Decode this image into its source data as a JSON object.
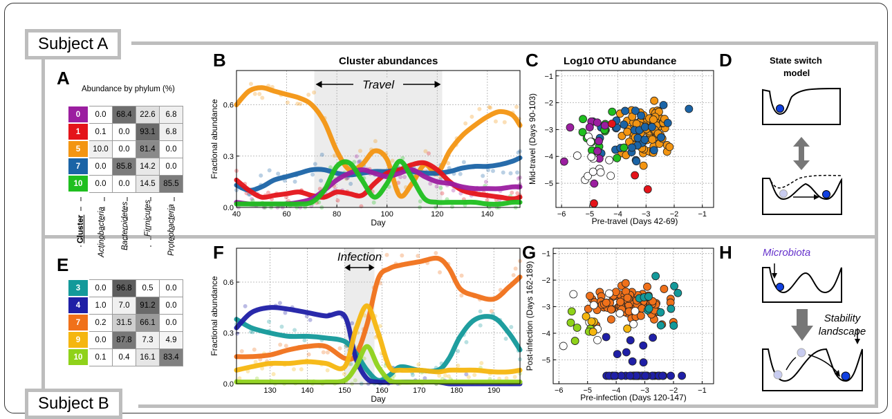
{
  "subjects": {
    "a": "Subject A",
    "b": "Subject B"
  },
  "letters": {
    "A": "A",
    "B": "B",
    "C": "C",
    "D": "D",
    "E": "E",
    "F": "F",
    "G": "G",
    "H": "H"
  },
  "abundance_title": "Abundance by phylum (%)",
  "cluster_label": "Cluster",
  "phyla": [
    "Actinobacteria",
    "Bacteroidetes",
    "Firmicutes",
    "Proteobacteria"
  ],
  "table_a": [
    {
      "cluster": "0",
      "color": "#9b1ea0",
      "values": [
        "0.0",
        "68.4",
        "22.6",
        "6.8"
      ],
      "shades": [
        "#fff",
        "#6e6e6e",
        "#e0e0e0",
        "#f0f0f0"
      ]
    },
    {
      "cluster": "1",
      "color": "#e4141a",
      "values": [
        "0.1",
        "0.0",
        "93.1",
        "6.8"
      ],
      "shades": [
        "#fff",
        "#fff",
        "#6a6a6a",
        "#f0f0f0"
      ]
    },
    {
      "cluster": "5",
      "color": "#f39512",
      "values": [
        "10.0",
        "0.0",
        "81.4",
        "0.0"
      ],
      "shades": [
        "#f0f0f0",
        "#fff",
        "#8a8a8a",
        "#fff"
      ]
    },
    {
      "cluster": "7",
      "color": "#1b64a6",
      "values": [
        "0.0",
        "85.8",
        "14.2",
        "0.0"
      ],
      "shades": [
        "#fff",
        "#7c7c7c",
        "#e8e8e8",
        "#fff"
      ]
    },
    {
      "cluster": "10",
      "color": "#1fbf1f",
      "values": [
        "0.0",
        "0.0",
        "14.5",
        "85.5"
      ],
      "shades": [
        "#fff",
        "#fff",
        "#e8e8e8",
        "#7c7c7c"
      ]
    }
  ],
  "table_e": [
    {
      "cluster": "3",
      "color": "#13999a",
      "values": [
        "0.0",
        "96.8",
        "0.5",
        "0.0"
      ],
      "shades": [
        "#fff",
        "#5e5e5e",
        "#fff",
        "#fff"
      ]
    },
    {
      "cluster": "4",
      "color": "#1f1fa6",
      "values": [
        "1.0",
        "7.0",
        "91.2",
        "0.0"
      ],
      "shades": [
        "#fff",
        "#f0f0f0",
        "#6a6a6a",
        "#fff"
      ]
    },
    {
      "cluster": "7",
      "color": "#f0711a",
      "values": [
        "0.2",
        "31.5",
        "66.1",
        "0.0"
      ],
      "shades": [
        "#fff",
        "#cfcfcf",
        "#9a9a9a",
        "#fff"
      ]
    },
    {
      "cluster": "9",
      "color": "#f5b60f",
      "values": [
        "0.0",
        "87.8",
        "7.3",
        "4.9"
      ],
      "shades": [
        "#fff",
        "#787878",
        "#f0f0f0",
        "#f5f5f5"
      ]
    },
    {
      "cluster": "10",
      "color": "#8fd21a",
      "values": [
        "0.1",
        "0.4",
        "16.1",
        "83.4"
      ],
      "shades": [
        "#fff",
        "#fff",
        "#e6e6e6",
        "#808080"
      ]
    }
  ],
  "panel_B": {
    "title": "Cluster abundances",
    "xlabel": "Day",
    "ylabel": "Fractional abundance",
    "annotation": "Travel"
  },
  "panel_C": {
    "title": "Log10 OTU abundance",
    "xlabel": "Pre-travel (Days 42-69)",
    "ylabel": "Mid-travel (Days 90-103)"
  },
  "panel_D": {
    "title_line1": "State switch",
    "title_line2": "model"
  },
  "panel_F": {
    "xlabel": "Day",
    "ylabel": "Fractional abundance",
    "annotation": "Infection"
  },
  "panel_G": {
    "xlabel": "Pre-infection (Days 120-147)",
    "ylabel": "Post-infection (Days 162-189)"
  },
  "panel_H": {
    "microbiota": "Microbiota",
    "stability1": "Stability",
    "stability2": "landscape"
  },
  "chart_data": [
    {
      "id": "B",
      "type": "line",
      "xlim": [
        40,
        153
      ],
      "ylim": [
        0,
        0.8
      ],
      "xticks": [
        40,
        60,
        80,
        100,
        120,
        140
      ],
      "yticks": [
        0.0,
        0.3,
        0.6
      ],
      "shade": [
        71,
        122
      ],
      "series": [
        {
          "color": "#f39512",
          "x": [
            40,
            45,
            50,
            55,
            60,
            65,
            70,
            75,
            80,
            85,
            90,
            95,
            100,
            105,
            110,
            115,
            120,
            125,
            130,
            135,
            140,
            145,
            150,
            153
          ],
          "y": [
            0.6,
            0.68,
            0.7,
            0.68,
            0.66,
            0.64,
            0.6,
            0.5,
            0.33,
            0.22,
            0.25,
            0.33,
            0.28,
            0.07,
            0.14,
            0.25,
            0.2,
            0.33,
            0.42,
            0.48,
            0.53,
            0.56,
            0.54,
            0.48
          ]
        },
        {
          "color": "#1b64a6",
          "x": [
            40,
            45,
            50,
            55,
            60,
            65,
            70,
            75,
            80,
            85,
            90,
            95,
            100,
            105,
            110,
            115,
            120,
            125,
            130,
            135,
            140,
            145,
            150,
            153
          ],
          "y": [
            0.13,
            0.1,
            0.12,
            0.16,
            0.18,
            0.2,
            0.22,
            0.22,
            0.2,
            0.19,
            0.2,
            0.21,
            0.21,
            0.22,
            0.21,
            0.2,
            0.2,
            0.21,
            0.23,
            0.24,
            0.24,
            0.25,
            0.27,
            0.29
          ]
        },
        {
          "color": "#e4141a",
          "x": [
            40,
            45,
            50,
            55,
            60,
            65,
            70,
            75,
            80,
            85,
            90,
            95,
            100,
            105,
            110,
            115,
            120,
            125,
            130,
            135,
            140,
            145,
            150,
            153
          ],
          "y": [
            0.16,
            0.1,
            0.06,
            0.07,
            0.08,
            0.09,
            0.07,
            0.06,
            0.09,
            0.08,
            0.07,
            0.14,
            0.2,
            0.22,
            0.25,
            0.26,
            0.22,
            0.15,
            0.1,
            0.08,
            0.07,
            0.06,
            0.05,
            0.06
          ]
        },
        {
          "color": "#9b1ea0",
          "x": [
            40,
            45,
            50,
            55,
            60,
            65,
            70,
            75,
            80,
            85,
            90,
            95,
            100,
            105,
            110,
            115,
            120,
            125,
            130,
            135,
            140,
            145,
            150,
            153
          ],
          "y": [
            0.03,
            0.02,
            0.02,
            0.02,
            0.02,
            0.03,
            0.05,
            0.1,
            0.16,
            0.2,
            0.22,
            0.2,
            0.18,
            0.2,
            0.22,
            0.18,
            0.15,
            0.14,
            0.12,
            0.11,
            0.11,
            0.11,
            0.12,
            0.12
          ]
        },
        {
          "color": "#1fbf1f",
          "x": [
            40,
            45,
            50,
            55,
            60,
            65,
            70,
            75,
            80,
            85,
            90,
            95,
            100,
            105,
            110,
            115,
            120,
            125,
            130,
            135,
            140,
            145,
            150,
            153
          ],
          "y": [
            0.02,
            0.02,
            0.02,
            0.02,
            0.02,
            0.02,
            0.03,
            0.1,
            0.24,
            0.26,
            0.16,
            0.06,
            0.14,
            0.27,
            0.17,
            0.05,
            0.03,
            0.03,
            0.03,
            0.03,
            0.02,
            0.02,
            0.03,
            0.03
          ]
        }
      ]
    },
    {
      "id": "C",
      "type": "scatter",
      "xlim": [
        -6.2,
        -0.6
      ],
      "ylim": [
        -5.9,
        -0.8
      ],
      "xticks": [
        -6,
        -5,
        -4,
        -3,
        -2,
        -1
      ],
      "yticks": [
        -6,
        -5,
        -4,
        -3,
        -2,
        -1
      ],
      "series": [
        {
          "color": "#f39512",
          "n": 110,
          "cx": -2.9,
          "cy": -3.1,
          "sx": 0.55,
          "sy": 0.65,
          "seed": 3
        },
        {
          "color": "#1b64a6",
          "n": 30,
          "cx": -3.3,
          "cy": -3.0,
          "sx": 1.0,
          "sy": 0.8,
          "seed": 7
        },
        {
          "color": "#1fbf1f",
          "n": 14,
          "cx": -4.6,
          "cy": -3.4,
          "sx": 0.9,
          "sy": 0.8,
          "seed": 11
        },
        {
          "color": "#9b1ea0",
          "n": 10,
          "cx": -4.8,
          "cy": -3.6,
          "sx": 1.0,
          "sy": 1.0,
          "seed": 13
        },
        {
          "color": "#ffffff",
          "n": 12,
          "cx": -4.9,
          "cy": -4.2,
          "sx": 0.7,
          "sy": 0.6,
          "seed": 17
        },
        {
          "color": "#e4141a",
          "n": 4,
          "cx": -4.2,
          "cy": -4.2,
          "sx": 1.2,
          "sy": 1.0,
          "seed": 19
        }
      ]
    },
    {
      "id": "F",
      "type": "line",
      "xlim": [
        121,
        197
      ],
      "ylim": [
        0,
        0.8
      ],
      "xticks": [
        130,
        140,
        150,
        160,
        170,
        180,
        190
      ],
      "yticks": [
        0.0,
        0.3,
        0.6
      ],
      "shade": [
        150,
        158
      ],
      "series": [
        {
          "color": "#f0711a",
          "x": [
            121,
            125,
            130,
            135,
            140,
            145,
            150,
            153,
            156,
            159,
            162,
            165,
            170,
            175,
            178,
            181,
            185,
            190,
            194,
            197
          ],
          "y": [
            0.16,
            0.16,
            0.17,
            0.2,
            0.22,
            0.22,
            0.15,
            0.17,
            0.35,
            0.62,
            0.68,
            0.7,
            0.72,
            0.74,
            0.68,
            0.56,
            0.52,
            0.5,
            0.57,
            0.63
          ]
        },
        {
          "color": "#13999a",
          "x": [
            121,
            125,
            130,
            135,
            140,
            145,
            150,
            153,
            156,
            159,
            162,
            165,
            170,
            175,
            178,
            181,
            185,
            190,
            194,
            197
          ],
          "y": [
            0.38,
            0.33,
            0.3,
            0.28,
            0.28,
            0.27,
            0.25,
            0.18,
            0.08,
            0.02,
            0.05,
            0.1,
            0.08,
            0.08,
            0.15,
            0.28,
            0.38,
            0.39,
            0.3,
            0.2
          ]
        },
        {
          "color": "#1f1fa6",
          "x": [
            121,
            125,
            130,
            135,
            140,
            145,
            150,
            153,
            156,
            159,
            162,
            165,
            170,
            175,
            178,
            181,
            185,
            190,
            194,
            197
          ],
          "y": [
            0.33,
            0.42,
            0.45,
            0.44,
            0.42,
            0.4,
            0.4,
            0.15,
            0.03,
            0.01,
            0.01,
            0.01,
            0.01,
            0.01,
            0.0,
            0.0,
            0.0,
            0.0,
            0.0,
            0.0
          ]
        },
        {
          "color": "#f5b60f",
          "x": [
            121,
            125,
            130,
            135,
            140,
            145,
            150,
            153,
            156,
            159,
            162,
            165,
            170,
            175,
            178,
            181,
            185,
            190,
            194,
            197
          ],
          "y": [
            0.08,
            0.1,
            0.12,
            0.12,
            0.13,
            0.12,
            0.1,
            0.32,
            0.46,
            0.3,
            0.1,
            0.08,
            0.08,
            0.07,
            0.08,
            0.08,
            0.08,
            0.07,
            0.07,
            0.08
          ]
        },
        {
          "color": "#8fd21a",
          "x": [
            121,
            125,
            130,
            135,
            140,
            145,
            150,
            153,
            156,
            159,
            162,
            165,
            170,
            175,
            178,
            181,
            185,
            190,
            194,
            197
          ],
          "y": [
            0.01,
            0.01,
            0.01,
            0.01,
            0.01,
            0.01,
            0.02,
            0.1,
            0.22,
            0.1,
            0.02,
            0.01,
            0.01,
            0.01,
            0.01,
            0.01,
            0.01,
            0.01,
            0.01,
            0.01
          ]
        }
      ]
    },
    {
      "id": "G",
      "type": "scatter",
      "xlim": [
        -6.2,
        -0.6
      ],
      "ylim": [
        -5.9,
        -0.8
      ],
      "xticks": [
        -6,
        -5,
        -4,
        -3,
        -2,
        -1
      ],
      "yticks": [
        -6,
        -5,
        -4,
        -3,
        -2,
        -1
      ],
      "series": [
        {
          "color": "#f0711a",
          "n": 95,
          "cx": -3.6,
          "cy": -2.9,
          "sx": 1.0,
          "sy": 0.45,
          "seed": 5
        },
        {
          "color": "#13999a",
          "n": 12,
          "cx": -2.4,
          "cy": -2.8,
          "sx": 0.8,
          "sy": 0.8,
          "seed": 9
        },
        {
          "color": "#ffffff",
          "n": 10,
          "cx": -4.2,
          "cy": -3.5,
          "sx": 0.9,
          "sy": 0.7,
          "seed": 21
        },
        {
          "color": "#8fd21a",
          "n": 6,
          "cx": -5.4,
          "cy": -4.0,
          "sx": 0.4,
          "sy": 0.8,
          "seed": 23
        },
        {
          "color": "#f5b60f",
          "n": 5,
          "cx": -4.7,
          "cy": -3.0,
          "sx": 0.8,
          "sy": 1.0,
          "seed": 25
        },
        {
          "color": "#1f1fa6",
          "n": 40,
          "cx": -3.2,
          "cy": -5.6,
          "sx": 1.0,
          "sy": 0.0,
          "seed": 27
        },
        {
          "color": "#1f1fa6",
          "n": 8,
          "cx": -3.3,
          "cy": -4.6,
          "sx": 0.6,
          "sy": 0.5,
          "seed": 29
        }
      ]
    }
  ]
}
